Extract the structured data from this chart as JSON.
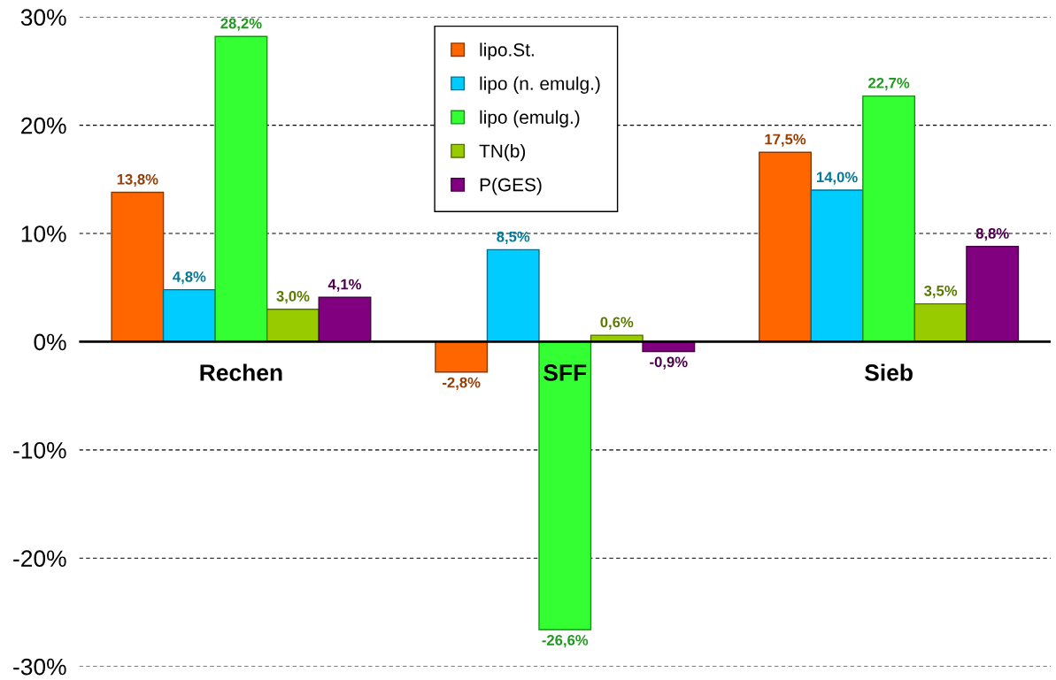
{
  "chart_data": {
    "type": "bar",
    "categories": [
      "Rechen",
      "SFF",
      "Sieb"
    ],
    "series": [
      {
        "name": "lipo.St.",
        "color": "#ff6600",
        "values": [
          13.8,
          -2.8,
          17.5
        ],
        "value_labels": [
          "13,8%",
          "-2,8%",
          "17,5%"
        ]
      },
      {
        "name": "lipo (n. emulg.)",
        "color": "#00ccff",
        "values": [
          4.8,
          8.5,
          14.0
        ],
        "value_labels": [
          "4,8%",
          "8,5%",
          "14,0%"
        ]
      },
      {
        "name": "lipo (emulg.)",
        "color": "#33ff33",
        "values": [
          28.2,
          -26.6,
          22.7
        ],
        "value_labels": [
          "28,2%",
          "-26,6%",
          "22,7%"
        ]
      },
      {
        "name": "TN(b)",
        "color": "#99cc00",
        "values": [
          3.0,
          0.6,
          3.5
        ],
        "value_labels": [
          "3,0%",
          "0,6%",
          "3,5%"
        ]
      },
      {
        "name": "P(GES)",
        "color": "#800080",
        "values": [
          4.1,
          -0.9,
          8.8
        ],
        "value_labels": [
          "4,1%",
          "-0,9%",
          "8,8%"
        ]
      }
    ],
    "ylim": [
      -30,
      30
    ],
    "yticks": [
      {
        "value": -30,
        "label": "-30%"
      },
      {
        "value": -20,
        "label": "-20%"
      },
      {
        "value": -10,
        "label": "-10%"
      },
      {
        "value": 0,
        "label": "0%"
      },
      {
        "value": 10,
        "label": "10%"
      },
      {
        "value": 20,
        "label": "20%"
      },
      {
        "value": 30,
        "label": "30%"
      }
    ],
    "grid": "y",
    "legend": "top"
  }
}
